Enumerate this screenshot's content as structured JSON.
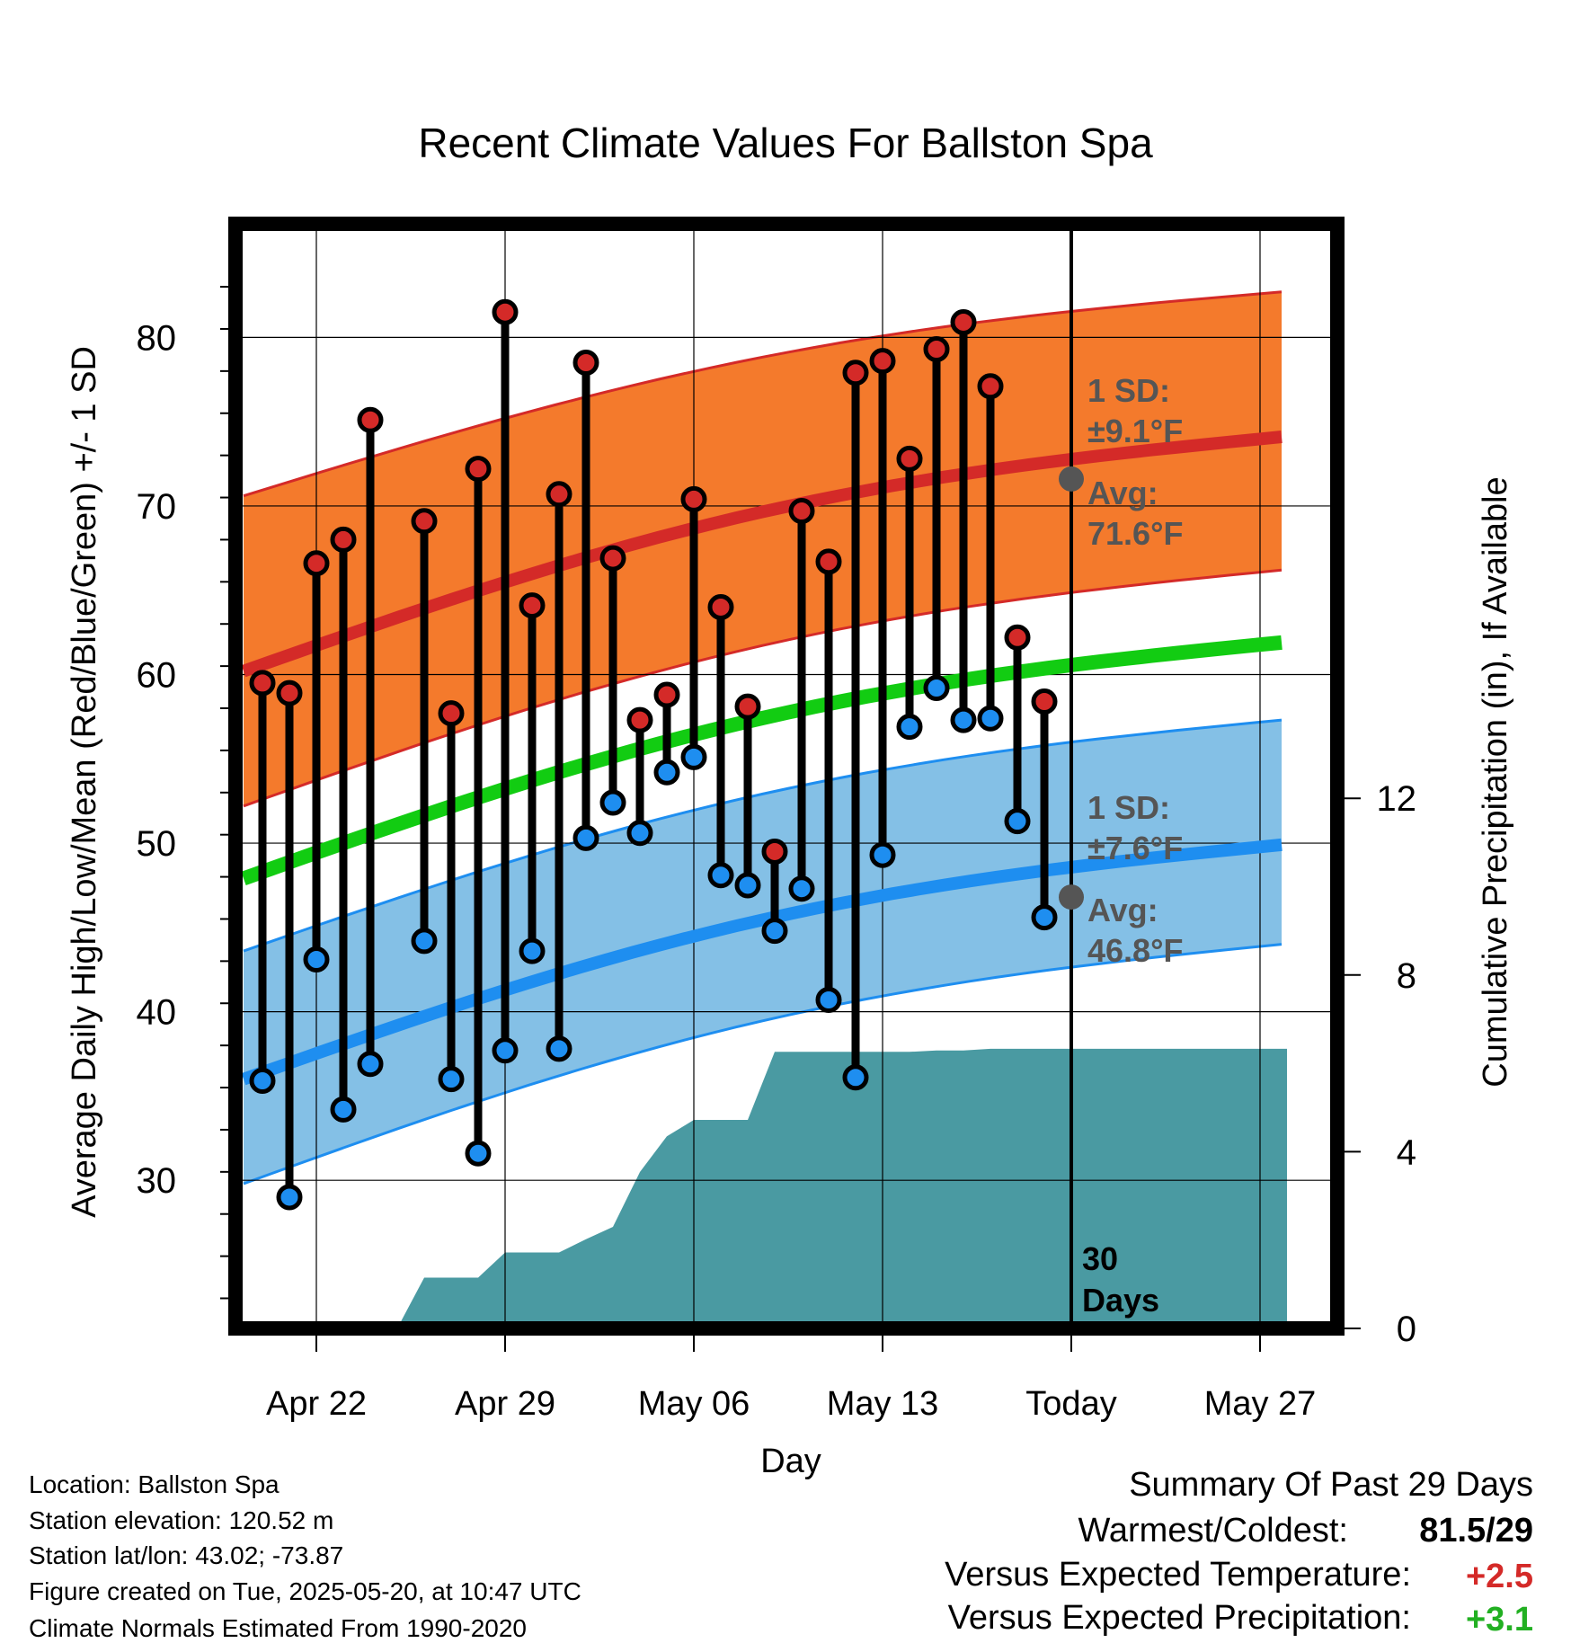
{
  "chart_data": {
    "type": "line",
    "title": "Recent Climate Values For Ballston Spa",
    "xlabel": "Day",
    "ylabel": "Average Daily High/Low/Mean (Red/Blue/Green) +/- 1 SD",
    "y2label": "Cumulative Precipitation (in), If Available",
    "xlim": [
      -3,
      36
    ],
    "ylim": [
      21,
      86
    ],
    "y2lim": [
      0,
      24
    ],
    "x_ticks": [
      {
        "x": 0,
        "label": "Apr 22"
      },
      {
        "x": 7,
        "label": "Apr 29"
      },
      {
        "x": 14,
        "label": "May 06"
      },
      {
        "x": 21,
        "label": "May 13"
      },
      {
        "x": 28,
        "label": "Today"
      },
      {
        "x": 35,
        "label": "May 27"
      }
    ],
    "y_ticks": [
      30,
      40,
      50,
      60,
      70,
      80
    ],
    "y2_ticks": [
      0,
      4,
      8,
      12
    ],
    "today_x": 28,
    "today_label": "30\nDays",
    "normals": {
      "x": [
        -2.7,
        35.8
      ],
      "high_mean": [
        60.2,
        74.1
      ],
      "high_upper": [
        70.6,
        82.7
      ],
      "high_lower": [
        52.2,
        66.2
      ],
      "mean": [
        47.9,
        61.9
      ],
      "low_mean": [
        36.0,
        49.9
      ],
      "low_upper": [
        43.6,
        57.3
      ],
      "low_lower": [
        29.8,
        44.0
      ]
    },
    "series": [
      {
        "name": "Daily High",
        "x": [
          -2,
          -1,
          0,
          1,
          2,
          4,
          5,
          6,
          7,
          8,
          9,
          10,
          11,
          12,
          13,
          14,
          15,
          16,
          17,
          18,
          19,
          20,
          21,
          22,
          23,
          24,
          25,
          26,
          27
        ],
        "values": [
          59.5,
          58.9,
          66.6,
          68.0,
          75.1,
          69.1,
          57.7,
          72.2,
          81.5,
          64.1,
          70.7,
          78.5,
          66.9,
          57.3,
          58.8,
          70.4,
          64.0,
          58.1,
          49.5,
          69.7,
          66.7,
          77.9,
          78.6,
          72.8,
          79.3,
          80.9,
          77.1,
          62.2,
          58.4
        ]
      },
      {
        "name": "Daily Low",
        "x": [
          -2,
          -1,
          0,
          1,
          2,
          4,
          5,
          6,
          7,
          8,
          9,
          10,
          11,
          12,
          13,
          14,
          15,
          16,
          17,
          18,
          19,
          20,
          21,
          22,
          23,
          24,
          25,
          26,
          27
        ],
        "values": [
          35.9,
          29.0,
          43.1,
          34.2,
          36.9,
          44.2,
          36.0,
          31.6,
          37.7,
          43.6,
          37.8,
          50.3,
          52.4,
          50.6,
          54.2,
          55.1,
          48.1,
          47.5,
          44.8,
          47.3,
          40.7,
          36.1,
          49.3,
          56.9,
          59.2,
          57.3,
          57.4,
          51.3,
          45.6
        ]
      },
      {
        "name": "Cumulative Precipitation",
        "x": [
          1,
          2,
          3,
          4,
          5,
          6,
          7,
          8,
          9,
          10,
          11,
          12,
          13,
          14,
          15,
          16,
          17,
          18,
          19,
          20,
          21,
          22,
          23,
          24,
          25,
          26,
          27,
          28,
          29,
          30,
          31,
          32,
          33,
          34,
          35
        ],
        "values": [
          0.0,
          0.0,
          0.0,
          1.15,
          1.15,
          1.15,
          1.72,
          1.72,
          1.72,
          2.02,
          2.3,
          3.54,
          4.35,
          4.72,
          4.72,
          4.72,
          6.26,
          6.26,
          6.26,
          6.26,
          6.26,
          6.26,
          6.29,
          6.29,
          6.33,
          6.33,
          6.33,
          6.33,
          6.33,
          6.33,
          6.33,
          6.33,
          6.33,
          6.33,
          6.33
        ]
      }
    ],
    "annotations": {
      "high_sd_label": "1 SD:",
      "high_sd_value": "±9.1°F",
      "high_avg_label": "Avg:",
      "high_avg_value": "71.6°F",
      "high_avg": 71.6,
      "low_sd_label": "1 SD:",
      "low_sd_value": "±7.6°F",
      "low_avg_label": "Avg:",
      "low_avg_value": "46.8°F",
      "low_avg": 46.8
    },
    "colors": {
      "high_band": "#f47a2c",
      "high_line": "#d42a28",
      "low_band": "#84c0e6",
      "low_line": "#1e8ef0",
      "mean_line": "#12cc12",
      "precip": "#4a9aa2",
      "high_dot": "#d42a28",
      "low_dot": "#1e8ef0",
      "annotation": "#555555"
    }
  },
  "footer": {
    "location": "Location: Ballston Spa",
    "elevation": "Station elevation: 120.52 m",
    "latlon": "Station lat/lon: 43.02; -73.87",
    "created": "Figure created on Tue, 2025-05-20, at 10:47 UTC",
    "normals": "Climate Normals Estimated From 1990-2020"
  },
  "summary": {
    "title": "Summary Of Past 29 Days",
    "warmest_label": "Warmest/Coldest:",
    "warmest_value": "81.5/29",
    "temp_label": "Versus Expected Temperature:",
    "temp_value": "+2.5",
    "temp_color": "#d42a28",
    "precip_label": "Versus Expected Precipitation:",
    "precip_value": "+3.1",
    "precip_color": "#22b022"
  }
}
